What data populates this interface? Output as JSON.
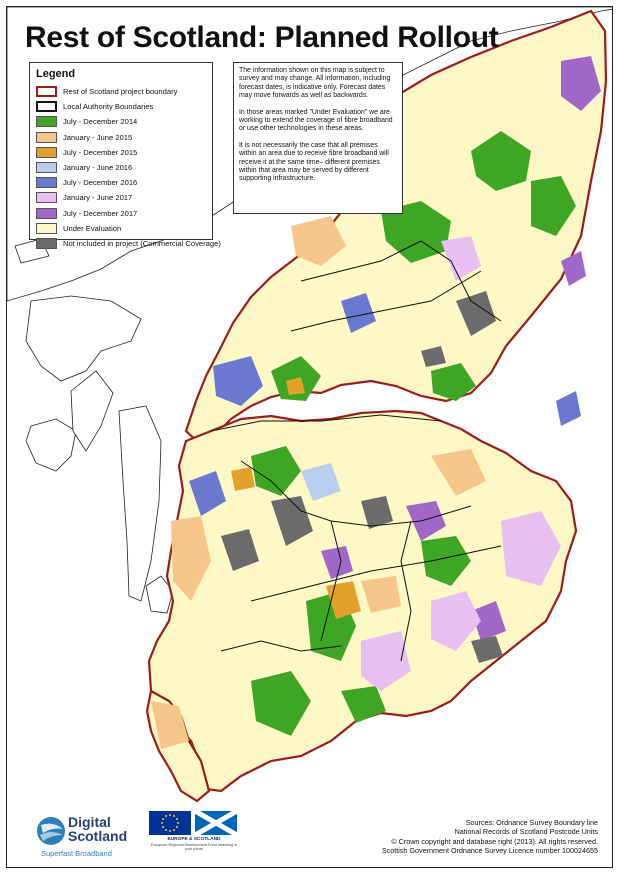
{
  "title": "Rest of Scotland: Planned Rollout",
  "legend": {
    "title": "Legend",
    "items": [
      {
        "label": "Rest of Scotland project boundary",
        "fill": "#ffffff",
        "stroke": "#9b1c1c"
      },
      {
        "label": "Local Authority Boundaries",
        "fill": "#ffffff",
        "stroke": "#111111"
      },
      {
        "label": "July - December 2014",
        "fill": "#3fa524",
        "stroke": "#3fa524"
      },
      {
        "label": "January - June 2015",
        "fill": "#f6c58a",
        "stroke": "#f6c58a"
      },
      {
        "label": "July - December 2015",
        "fill": "#e2a12b",
        "stroke": "#e2a12b"
      },
      {
        "label": "January - June 2016",
        "fill": "#b9cdef",
        "stroke": "#b9cdef"
      },
      {
        "label": "July - December 2016",
        "fill": "#6a79cf",
        "stroke": "#6a79cf"
      },
      {
        "label": "January - June 2017",
        "fill": "#e7bff0",
        "stroke": "#e7bff0"
      },
      {
        "label": "July - December 2017",
        "fill": "#a066c8",
        "stroke": "#a066c8"
      },
      {
        "label": "Under Evaluation",
        "fill": "#fdf8c6",
        "stroke": "#fdf8c6"
      },
      {
        "label": "Not included in project (Commercial Coverage)",
        "fill": "#6b6b6b",
        "stroke": "#6b6b6b"
      }
    ]
  },
  "info": {
    "paragraphs": [
      "The information shown on this map is subject to survey and may change. All information, including forecast dates, is indicative only. Forecast dates may move forwards as well as backwards.",
      "In those areas marked \"Under Evaluation\" we are working to extend the coverage of fibre broadband or use other technologies in these areas.",
      "It is not necessarily the case that all premises within an area due to receive fibre broadband will receive it at the same time– different premises within that area may be served by different supporting infrastructure."
    ]
  },
  "logos": {
    "digital_scotland": {
      "line1": "Digital",
      "line2": "Scotland",
      "tagline": "Superfast Broadband"
    },
    "eu": {
      "caption": "EUROPE & SCOTLAND",
      "subcaption": "European Regional Development Fund Investing in your future"
    }
  },
  "sources": {
    "lines": [
      "Sources: Ordnance Survey Boundary line",
      "National Records of Scotland Postcode Units",
      "© Crown copyright and database right (2013). All rights reserved.",
      "Scottish Government Ordnance Survey Licence number 100024655"
    ]
  },
  "colors": {
    "boundary": "#9b1c1c",
    "under_evaluation": "#fdf8c6",
    "green": "#3fa524",
    "grey": "#6b6b6b",
    "purple": "#a066c8",
    "lilac": "#e7bff0",
    "blue": "#6a79cf",
    "lightblue": "#b9cdef",
    "peach": "#f6c58a",
    "orange": "#e2a12b"
  }
}
